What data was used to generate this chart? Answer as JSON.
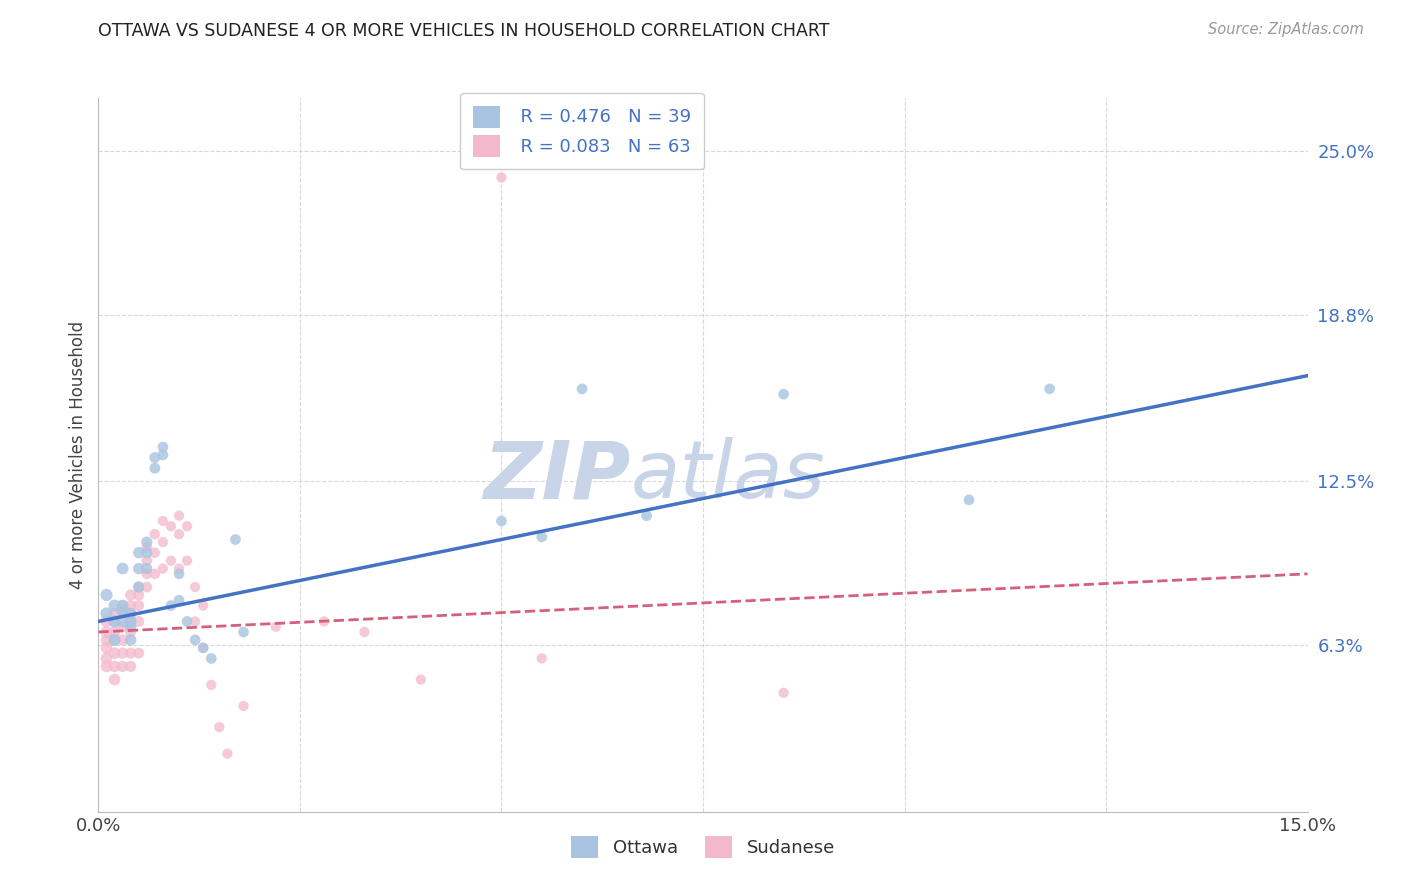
{
  "title": "OTTAWA VS SUDANESE 4 OR MORE VEHICLES IN HOUSEHOLD CORRELATION CHART",
  "source": "Source: ZipAtlas.com",
  "ylabel": "4 or more Vehicles in Household",
  "xlim": [
    0.0,
    0.15
  ],
  "ylim": [
    0.0,
    0.27
  ],
  "ytick_values": [
    0.063,
    0.125,
    0.188,
    0.25
  ],
  "ytick_labels": [
    "6.3%",
    "12.5%",
    "18.8%",
    "25.0%"
  ],
  "background_color": "#ffffff",
  "grid_color": "#d8d8d8",
  "ottawa_color": "#a8c4e0",
  "sudanese_color": "#f4b8cc",
  "ottawa_line_color": "#4472c4",
  "sudanese_line_color": "#d4607a",
  "legend_ottawa_R": "R = 0.476",
  "legend_ottawa_N": "N = 39",
  "legend_sudanese_R": "R = 0.083",
  "legend_sudanese_N": "N = 63",
  "watermark_zip": "ZIP",
  "watermark_atlas": "atlas",
  "watermark_color": "#c8d4e8",
  "ottawa_x": [
    0.001,
    0.001,
    0.002,
    0.002,
    0.002,
    0.003,
    0.003,
    0.003,
    0.003,
    0.004,
    0.004,
    0.004,
    0.004,
    0.005,
    0.005,
    0.005,
    0.006,
    0.006,
    0.006,
    0.007,
    0.007,
    0.008,
    0.008,
    0.009,
    0.01,
    0.01,
    0.011,
    0.012,
    0.013,
    0.014,
    0.017,
    0.018,
    0.05,
    0.055,
    0.06,
    0.068,
    0.085,
    0.108,
    0.118
  ],
  "ottawa_y": [
    0.082,
    0.075,
    0.078,
    0.072,
    0.065,
    0.092,
    0.078,
    0.076,
    0.072,
    0.07,
    0.075,
    0.072,
    0.065,
    0.098,
    0.092,
    0.085,
    0.102,
    0.098,
    0.092,
    0.134,
    0.13,
    0.138,
    0.135,
    0.078,
    0.09,
    0.08,
    0.072,
    0.065,
    0.062,
    0.058,
    0.103,
    0.068,
    0.11,
    0.104,
    0.16,
    0.112,
    0.158,
    0.118,
    0.16
  ],
  "sudanese_x": [
    0.001,
    0.001,
    0.001,
    0.001,
    0.001,
    0.001,
    0.002,
    0.002,
    0.002,
    0.002,
    0.002,
    0.002,
    0.002,
    0.003,
    0.003,
    0.003,
    0.003,
    0.003,
    0.003,
    0.004,
    0.004,
    0.004,
    0.004,
    0.004,
    0.004,
    0.004,
    0.005,
    0.005,
    0.005,
    0.005,
    0.005,
    0.006,
    0.006,
    0.006,
    0.006,
    0.007,
    0.007,
    0.007,
    0.008,
    0.008,
    0.008,
    0.009,
    0.009,
    0.01,
    0.01,
    0.01,
    0.011,
    0.011,
    0.012,
    0.012,
    0.013,
    0.013,
    0.014,
    0.015,
    0.016,
    0.018,
    0.022,
    0.028,
    0.033,
    0.04,
    0.05,
    0.055,
    0.085
  ],
  "sudanese_y": [
    0.072,
    0.068,
    0.065,
    0.062,
    0.058,
    0.055,
    0.075,
    0.072,
    0.068,
    0.065,
    0.06,
    0.055,
    0.05,
    0.078,
    0.075,
    0.07,
    0.065,
    0.06,
    0.055,
    0.082,
    0.078,
    0.075,
    0.072,
    0.068,
    0.06,
    0.055,
    0.085,
    0.082,
    0.078,
    0.072,
    0.06,
    0.1,
    0.095,
    0.09,
    0.085,
    0.105,
    0.098,
    0.09,
    0.11,
    0.102,
    0.092,
    0.108,
    0.095,
    0.112,
    0.105,
    0.092,
    0.108,
    0.095,
    0.085,
    0.072,
    0.078,
    0.062,
    0.048,
    0.032,
    0.022,
    0.04,
    0.07,
    0.072,
    0.068,
    0.05,
    0.24,
    0.058,
    0.045
  ],
  "ottawa_line_x": [
    0.0,
    0.15
  ],
  "ottawa_line_y": [
    0.072,
    0.165
  ],
  "sudanese_line_x": [
    0.0,
    0.15
  ],
  "sudanese_line_y": [
    0.068,
    0.09
  ]
}
